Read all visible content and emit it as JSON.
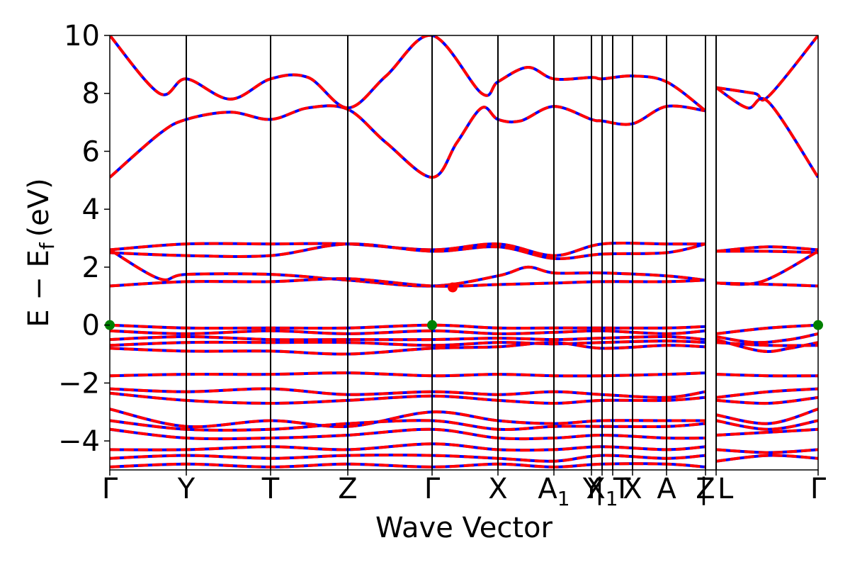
{
  "chart_data": {
    "type": "line",
    "xlabel": "Wave Vector",
    "ylabel": "E − E",
    "ylabel_sub": "f",
    "ylabel_unit": "(eV)",
    "ylim": [
      -5,
      10
    ],
    "xlim": [
      0,
      10
    ],
    "yticks": [
      -4,
      -2,
      0,
      2,
      4,
      6,
      8,
      10
    ],
    "ytick_labels": [
      "−4",
      "−2",
      "0",
      "2",
      "4",
      "6",
      "8",
      "10"
    ],
    "kpoints": [
      {
        "label": "Γ",
        "x": 0.0
      },
      {
        "label": "Y",
        "x": 1.08
      },
      {
        "label": "T",
        "x": 2.27
      },
      {
        "label": "Z",
        "x": 3.36
      },
      {
        "label": "Γ",
        "x": 4.55
      },
      {
        "label": "X",
        "x": 5.48
      },
      {
        "label": "A",
        "sub": "1",
        "x": 6.27
      },
      {
        "label": "Y",
        "x": 6.8
      },
      {
        "label": "X",
        "sub": "1",
        "x": 6.95
      },
      {
        "label": "| T",
        "x": 7.1
      },
      {
        "label": "X",
        "x": 7.38
      },
      {
        "label": "A",
        "x": 7.86
      },
      {
        "label": "Z",
        "x": 8.41
      },
      {
        "label": "| L",
        "x": 8.56
      },
      {
        "label": "Γ",
        "x": 10.0
      }
    ],
    "series": [
      {
        "color": "#0000ff",
        "style": "solid"
      },
      {
        "color": "#ff0000",
        "style": "dashed"
      }
    ],
    "conduction_bands": [
      [
        [
          0,
          5.1
        ],
        [
          0.7,
          6.6
        ],
        [
          1.08,
          7.1
        ],
        [
          1.7,
          7.35
        ],
        [
          2.27,
          7.1
        ],
        [
          2.8,
          7.5
        ],
        [
          3.36,
          7.45
        ],
        [
          3.9,
          6.3
        ],
        [
          4.55,
          5.1
        ],
        [
          4.9,
          6.3
        ],
        [
          5.25,
          7.5
        ],
        [
          5.48,
          7.1
        ],
        [
          5.8,
          7.05
        ],
        [
          6.27,
          7.55
        ],
        [
          6.8,
          7.1
        ],
        [
          6.95,
          7.05
        ],
        [
          7.38,
          6.95
        ],
        [
          7.86,
          7.55
        ],
        [
          8.41,
          7.4
        ]
      ],
      [
        [
          0,
          10.0
        ],
        [
          0.7,
          8.0
        ],
        [
          1.08,
          8.5
        ],
        [
          1.7,
          7.8
        ],
        [
          2.27,
          8.5
        ],
        [
          2.8,
          8.55
        ],
        [
          3.36,
          7.5
        ],
        [
          3.9,
          8.6
        ],
        [
          4.55,
          10.0
        ],
        [
          5.25,
          8.0
        ],
        [
          5.48,
          8.4
        ],
        [
          5.9,
          8.9
        ],
        [
          6.27,
          8.5
        ],
        [
          6.8,
          8.55
        ],
        [
          6.95,
          8.5
        ],
        [
          7.38,
          8.6
        ],
        [
          7.86,
          8.4
        ],
        [
          8.41,
          7.4
        ]
      ],
      [
        [
          8.56,
          8.2
        ],
        [
          9.1,
          8.0
        ],
        [
          9.3,
          7.9
        ],
        [
          10.0,
          10.0
        ]
      ],
      [
        [
          8.56,
          8.2
        ],
        [
          9.0,
          7.5
        ],
        [
          9.3,
          7.7
        ],
        [
          10.0,
          5.1
        ]
      ]
    ],
    "upper_valence_bands": [
      [
        [
          0,
          2.6
        ],
        [
          1.08,
          2.8
        ],
        [
          2.27,
          2.8
        ],
        [
          3.36,
          2.8
        ],
        [
          4.55,
          2.6
        ],
        [
          5.48,
          2.8
        ],
        [
          6.27,
          2.4
        ],
        [
          6.95,
          2.8
        ],
        [
          7.86,
          2.8
        ],
        [
          8.41,
          2.8
        ]
      ],
      [
        [
          0,
          2.5
        ],
        [
          1.08,
          2.4
        ],
        [
          2.27,
          2.4
        ],
        [
          3.36,
          2.8
        ],
        [
          4.55,
          2.55
        ],
        [
          5.48,
          2.7
        ],
        [
          6.27,
          2.3
        ],
        [
          6.95,
          2.45
        ],
        [
          7.86,
          2.5
        ],
        [
          8.41,
          2.8
        ]
      ],
      [
        [
          0,
          2.6
        ],
        [
          0.7,
          1.6
        ],
        [
          1.08,
          1.75
        ],
        [
          2.27,
          1.75
        ],
        [
          3.36,
          1.55
        ],
        [
          4.55,
          1.35
        ],
        [
          5.48,
          1.7
        ],
        [
          5.9,
          2.0
        ],
        [
          6.27,
          1.8
        ],
        [
          6.95,
          1.8
        ],
        [
          7.86,
          1.7
        ],
        [
          8.41,
          1.55
        ]
      ],
      [
        [
          0,
          1.35
        ],
        [
          1.08,
          1.5
        ],
        [
          2.27,
          1.5
        ],
        [
          3.36,
          1.6
        ],
        [
          4.55,
          1.35
        ],
        [
          5.48,
          1.4
        ],
        [
          6.27,
          1.45
        ],
        [
          6.95,
          1.5
        ],
        [
          7.86,
          1.5
        ],
        [
          8.41,
          1.55
        ]
      ],
      [
        [
          8.56,
          2.55
        ],
        [
          9.3,
          2.7
        ],
        [
          10.0,
          2.6
        ]
      ],
      [
        [
          8.56,
          2.55
        ],
        [
          9.3,
          2.55
        ],
        [
          10.0,
          2.5
        ]
      ],
      [
        [
          8.56,
          1.45
        ],
        [
          9.2,
          1.5
        ],
        [
          10.0,
          2.55
        ]
      ],
      [
        [
          8.56,
          1.45
        ],
        [
          9.4,
          1.4
        ],
        [
          10.0,
          1.35
        ]
      ]
    ],
    "valence_bands": [
      [
        [
          0,
          0.0
        ],
        [
          1.08,
          -0.1
        ],
        [
          2.27,
          -0.1
        ],
        [
          3.36,
          -0.1
        ],
        [
          4.55,
          0.0
        ],
        [
          5.48,
          -0.1
        ],
        [
          6.27,
          -0.1
        ],
        [
          6.95,
          -0.1
        ],
        [
          7.86,
          -0.1
        ],
        [
          8.41,
          -0.05
        ]
      ],
      [
        [
          0,
          -0.2
        ],
        [
          1.08,
          -0.3
        ],
        [
          2.27,
          -0.2
        ],
        [
          3.36,
          -0.3
        ],
        [
          4.55,
          -0.2
        ],
        [
          5.48,
          -0.3
        ],
        [
          6.27,
          -0.25
        ],
        [
          6.95,
          -0.2
        ],
        [
          7.86,
          -0.3
        ],
        [
          8.41,
          -0.2
        ]
      ],
      [
        [
          0,
          -0.5
        ],
        [
          1.08,
          -0.4
        ],
        [
          2.27,
          -0.5
        ],
        [
          3.36,
          -0.5
        ],
        [
          4.55,
          -0.5
        ],
        [
          5.48,
          -0.45
        ],
        [
          6.27,
          -0.5
        ],
        [
          6.95,
          -0.45
        ],
        [
          7.86,
          -0.4
        ],
        [
          8.41,
          -0.5
        ]
      ],
      [
        [
          0,
          -0.7
        ],
        [
          1.08,
          -0.6
        ],
        [
          2.27,
          -0.6
        ],
        [
          3.36,
          -0.6
        ],
        [
          4.55,
          -0.7
        ],
        [
          5.48,
          -0.6
        ],
        [
          6.27,
          -0.65
        ],
        [
          6.95,
          -0.6
        ],
        [
          7.86,
          -0.55
        ],
        [
          8.41,
          -0.6
        ]
      ],
      [
        [
          0,
          -0.8
        ],
        [
          1.08,
          -0.9
        ],
        [
          2.27,
          -0.9
        ],
        [
          3.36,
          -1.0
        ],
        [
          4.55,
          -0.8
        ],
        [
          5.48,
          -0.75
        ],
        [
          6.27,
          -0.6
        ],
        [
          6.95,
          -0.8
        ],
        [
          7.86,
          -0.7
        ],
        [
          8.41,
          -0.75
        ]
      ],
      [
        [
          0,
          -1.75
        ],
        [
          1.08,
          -1.7
        ],
        [
          2.27,
          -1.7
        ],
        [
          3.36,
          -1.65
        ],
        [
          4.55,
          -1.75
        ],
        [
          5.48,
          -1.7
        ],
        [
          6.27,
          -1.75
        ],
        [
          6.95,
          -1.75
        ],
        [
          7.86,
          -1.7
        ],
        [
          8.41,
          -1.65
        ]
      ],
      [
        [
          0,
          -2.2
        ],
        [
          1.08,
          -2.3
        ],
        [
          2.27,
          -2.2
        ],
        [
          3.36,
          -2.4
        ],
        [
          4.55,
          -2.3
        ],
        [
          5.48,
          -2.4
        ],
        [
          6.27,
          -2.3
        ],
        [
          6.95,
          -2.4
        ],
        [
          7.86,
          -2.5
        ],
        [
          8.41,
          -2.3
        ]
      ],
      [
        [
          0,
          -2.35
        ],
        [
          1.08,
          -2.6
        ],
        [
          2.27,
          -2.7
        ],
        [
          3.36,
          -2.6
        ],
        [
          4.55,
          -2.45
        ],
        [
          5.48,
          -2.6
        ],
        [
          6.27,
          -2.7
        ],
        [
          6.95,
          -2.6
        ],
        [
          7.86,
          -2.6
        ],
        [
          8.41,
          -2.5
        ]
      ],
      [
        [
          0,
          -2.9
        ],
        [
          1.08,
          -3.5
        ],
        [
          2.27,
          -3.3
        ],
        [
          3.36,
          -3.5
        ],
        [
          4.55,
          -3.0
        ],
        [
          5.48,
          -3.3
        ],
        [
          6.27,
          -3.4
        ],
        [
          6.95,
          -3.3
        ],
        [
          7.86,
          -3.3
        ],
        [
          8.41,
          -3.3
        ]
      ],
      [
        [
          0,
          -3.3
        ],
        [
          1.08,
          -3.6
        ],
        [
          2.27,
          -3.6
        ],
        [
          3.36,
          -3.4
        ],
        [
          4.55,
          -3.3
        ],
        [
          5.48,
          -3.6
        ],
        [
          6.27,
          -3.5
        ],
        [
          6.95,
          -3.5
        ],
        [
          7.86,
          -3.5
        ],
        [
          8.41,
          -3.4
        ]
      ],
      [
        [
          0,
          -3.6
        ],
        [
          1.08,
          -3.9
        ],
        [
          2.27,
          -3.9
        ],
        [
          3.36,
          -3.8
        ],
        [
          4.55,
          -3.6
        ],
        [
          5.48,
          -3.9
        ],
        [
          6.27,
          -3.9
        ],
        [
          6.95,
          -3.8
        ],
        [
          7.86,
          -3.9
        ],
        [
          8.41,
          -3.9
        ]
      ],
      [
        [
          0,
          -4.3
        ],
        [
          1.08,
          -4.3
        ],
        [
          2.27,
          -4.2
        ],
        [
          3.36,
          -4.3
        ],
        [
          4.55,
          -4.1
        ],
        [
          5.48,
          -4.3
        ],
        [
          6.27,
          -4.3
        ],
        [
          6.95,
          -4.2
        ],
        [
          7.86,
          -4.3
        ],
        [
          8.41,
          -4.2
        ]
      ],
      [
        [
          0,
          -4.6
        ],
        [
          1.08,
          -4.5
        ],
        [
          2.27,
          -4.6
        ],
        [
          3.36,
          -4.5
        ],
        [
          4.55,
          -4.5
        ],
        [
          5.48,
          -4.6
        ],
        [
          6.27,
          -4.7
        ],
        [
          6.95,
          -4.5
        ],
        [
          7.86,
          -4.6
        ],
        [
          8.41,
          -4.5
        ]
      ],
      [
        [
          0,
          -4.9
        ],
        [
          1.08,
          -4.8
        ],
        [
          2.27,
          -4.9
        ],
        [
          3.36,
          -4.8
        ],
        [
          4.55,
          -4.9
        ],
        [
          5.48,
          -4.8
        ],
        [
          6.27,
          -4.9
        ],
        [
          6.95,
          -4.8
        ],
        [
          7.86,
          -4.8
        ],
        [
          8.41,
          -4.9
        ]
      ],
      [
        [
          8.56,
          -0.3
        ],
        [
          9.3,
          -0.1
        ],
        [
          10.0,
          0.0
        ]
      ],
      [
        [
          8.56,
          -0.4
        ],
        [
          9.1,
          -0.6
        ],
        [
          9.6,
          -0.5
        ],
        [
          10.0,
          -0.3
        ]
      ],
      [
        [
          8.56,
          -0.5
        ],
        [
          9.2,
          -0.9
        ],
        [
          9.6,
          -0.8
        ],
        [
          10.0,
          -0.6
        ]
      ],
      [
        [
          8.56,
          -0.6
        ],
        [
          9.3,
          -0.7
        ],
        [
          10.0,
          -0.7
        ]
      ],
      [
        [
          8.56,
          -1.7
        ],
        [
          9.3,
          -1.75
        ],
        [
          10.0,
          -1.75
        ]
      ],
      [
        [
          8.56,
          -2.5
        ],
        [
          9.3,
          -2.3
        ],
        [
          10.0,
          -2.2
        ]
      ],
      [
        [
          8.56,
          -2.6
        ],
        [
          9.3,
          -2.7
        ],
        [
          10.0,
          -2.5
        ]
      ],
      [
        [
          8.56,
          -3.1
        ],
        [
          9.3,
          -3.4
        ],
        [
          10.0,
          -2.9
        ]
      ],
      [
        [
          8.56,
          -3.3
        ],
        [
          9.3,
          -3.6
        ],
        [
          10.0,
          -3.3
        ]
      ],
      [
        [
          8.56,
          -3.8
        ],
        [
          9.3,
          -3.7
        ],
        [
          10.0,
          -3.6
        ]
      ],
      [
        [
          8.56,
          -4.3
        ],
        [
          9.3,
          -4.4
        ],
        [
          10.0,
          -4.3
        ]
      ],
      [
        [
          8.56,
          -4.7
        ],
        [
          9.3,
          -4.5
        ],
        [
          10.0,
          -4.6
        ]
      ]
    ],
    "vbm_points": [
      {
        "x": 0.0,
        "y": 0.0,
        "color": "#008000"
      },
      {
        "x": 4.55,
        "y": 0.0,
        "color": "#008000"
      },
      {
        "x": 10.0,
        "y": 0.0,
        "color": "#008000"
      }
    ],
    "cbm_points": [
      {
        "x": 4.84,
        "y": 1.3,
        "color": "#ff0000"
      }
    ]
  }
}
